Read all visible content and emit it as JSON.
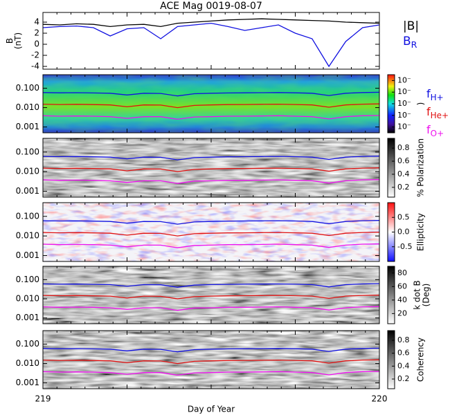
{
  "chart_data": {
    "type": "multi-panel",
    "title": "ACE Mag 0019-08-07",
    "x_label": "Day of Year",
    "xlim": [
      219,
      220
    ],
    "xticks": [
      219,
      220
    ],
    "x": [
      219.0,
      219.05,
      219.1,
      219.15,
      219.2,
      219.25,
      219.3,
      219.35,
      219.4,
      219.45,
      219.5,
      219.55,
      219.6,
      219.65,
      219.7,
      219.75,
      219.8,
      219.85,
      219.9,
      219.95,
      220.0
    ],
    "lines": {
      "series": [
        {
          "name": "f",
          "sub": "H+",
          "color": "#1010e0",
          "values": [
            0.06,
            0.058,
            0.059,
            0.057,
            0.055,
            0.045,
            0.055,
            0.054,
            0.04,
            0.052,
            0.055,
            0.057,
            0.058,
            0.059,
            0.06,
            0.058,
            0.055,
            0.042,
            0.055,
            0.06,
            0.062
          ]
        },
        {
          "name": "f",
          "sub": "He+",
          "color": "#e01010",
          "values": [
            0.015,
            0.0145,
            0.0148,
            0.0143,
            0.0138,
            0.011,
            0.0138,
            0.0135,
            0.01,
            0.013,
            0.0138,
            0.0143,
            0.0145,
            0.0148,
            0.015,
            0.0145,
            0.0138,
            0.0105,
            0.0138,
            0.015,
            0.0155
          ]
        },
        {
          "name": "f",
          "sub": "O+",
          "color": "#ee10ee",
          "values": [
            0.0038,
            0.0036,
            0.0037,
            0.0036,
            0.0034,
            0.0028,
            0.0034,
            0.0034,
            0.0025,
            0.0033,
            0.0034,
            0.0036,
            0.0036,
            0.0037,
            0.0038,
            0.0036,
            0.0034,
            0.0026,
            0.0034,
            0.0038,
            0.0039
          ]
        }
      ]
    },
    "panels": [
      {
        "type": "line",
        "y_label": "B",
        "y_unit": "(nT)",
        "ylim": [
          -4.5,
          5.75
        ],
        "yticks": [
          4,
          2,
          0,
          -2,
          -4
        ],
        "series": [
          {
            "name": "|B|",
            "color": "#000000",
            "values": [
              3.6,
              3.5,
              3.7,
              3.6,
              3.2,
              3.5,
              3.6,
              3.2,
              3.8,
              4.0,
              4.2,
              4.4,
              4.5,
              4.6,
              4.5,
              4.4,
              4.3,
              4.2,
              4.0,
              3.9,
              3.8
            ]
          },
          {
            "name": "B",
            "sub": "R",
            "color": "#1010e0",
            "values": [
              3.0,
              3.2,
              3.3,
              3.0,
              1.5,
              2.8,
              3.0,
              1.0,
              3.2,
              3.5,
              3.8,
              3.2,
              2.5,
              3.0,
              3.5,
              2.0,
              1.0,
              -4.0,
              0.5,
              3.0,
              3.5
            ]
          }
        ]
      },
      {
        "type": "spectrogram",
        "palette": "rainbow",
        "log_y": true,
        "ylim": [
          0.0005,
          0.5
        ],
        "yticks": [
          {
            "value": 0.1,
            "label": "0.100"
          },
          {
            "value": 0.01,
            "label": "0.010"
          },
          {
            "value": 0.001,
            "label": "0.001"
          }
        ],
        "clim": [
          0.5,
          5.5
        ],
        "cticks": [
          {
            "value": 5,
            "label": "10⁻"
          },
          {
            "value": 4,
            "label": "10⁻"
          },
          {
            "value": 3,
            "label": "10⁻"
          },
          {
            "value": 2,
            "label": "10⁻"
          },
          {
            "value": 1,
            "label": "10⁻"
          }
        ],
        "colorbar_label": ")",
        "legend": true
      },
      {
        "type": "spectrogram",
        "palette": "gray",
        "log_y": true,
        "ylim": [
          0.0005,
          0.5
        ],
        "yticks": [
          {
            "value": 0.1,
            "label": "0.100"
          },
          {
            "value": 0.01,
            "label": "0.010"
          },
          {
            "value": 0.001,
            "label": "0.001"
          }
        ],
        "clim": [
          0.05,
          0.95
        ],
        "cticks": [
          0.8,
          0.6,
          0.4,
          0.2
        ],
        "colorbar_label": "% Polarization"
      },
      {
        "type": "spectrogram",
        "palette": "redblue",
        "log_y": true,
        "ylim": [
          0.0005,
          0.5
        ],
        "yticks": [
          {
            "value": 0.1,
            "label": "0.100"
          },
          {
            "value": 0.01,
            "label": "0.010"
          },
          {
            "value": 0.001,
            "label": "0.001"
          }
        ],
        "clim": [
          -1,
          1
        ],
        "cticks": [
          0.5,
          {
            "value": 0,
            "label": "0.0"
          },
          -0.5
        ],
        "colorbar_label": "Ellipticity"
      },
      {
        "type": "spectrogram",
        "palette": "gray",
        "log_y": true,
        "ylim": [
          0.0005,
          0.5
        ],
        "yticks": [
          {
            "value": 0.1,
            "label": "0.100"
          },
          {
            "value": 0.01,
            "label": "0.010"
          },
          {
            "value": 0.001,
            "label": "0.001"
          }
        ],
        "clim": [
          5,
          90
        ],
        "cticks": [
          80,
          60,
          40,
          20
        ],
        "colorbar_label": "k dot B",
        "colorbar_unit": "(Deg)"
      },
      {
        "type": "spectrogram",
        "palette": "gray",
        "log_y": true,
        "ylim": [
          0.0005,
          0.5
        ],
        "yticks": [
          {
            "value": 0.1,
            "label": "0.100"
          },
          {
            "value": 0.01,
            "label": "0.010"
          },
          {
            "value": 0.001,
            "label": "0.001"
          }
        ],
        "clim": [
          0.05,
          0.95
        ],
        "cticks": [
          0.8,
          0.6,
          0.4,
          0.2
        ],
        "colorbar_label": "Coherency"
      }
    ]
  }
}
